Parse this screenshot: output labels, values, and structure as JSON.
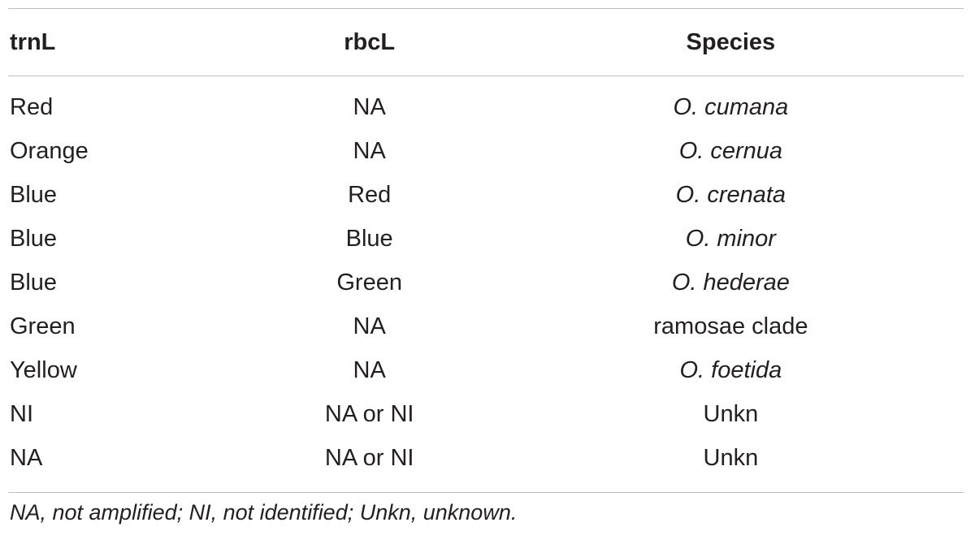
{
  "table": {
    "headers": [
      "trnL",
      "rbcL",
      "Species"
    ],
    "rows": [
      {
        "trnL": "Red",
        "rbcL": "NA",
        "species": "O. cumana",
        "italic": true
      },
      {
        "trnL": "Orange",
        "rbcL": "NA",
        "species": "O. cernua",
        "italic": true
      },
      {
        "trnL": "Blue",
        "rbcL": "Red",
        "species": "O. crenata",
        "italic": true
      },
      {
        "trnL": "Blue",
        "rbcL": "Blue",
        "species": "O. minor",
        "italic": true
      },
      {
        "trnL": "Blue",
        "rbcL": "Green",
        "species": "O. hederae",
        "italic": true
      },
      {
        "trnL": "Green",
        "rbcL": "NA",
        "species": "ramosae clade",
        "italic": false
      },
      {
        "trnL": "Yellow",
        "rbcL": "NA",
        "species": "O. foetida",
        "italic": true
      },
      {
        "trnL": "NI",
        "rbcL": "NA or NI",
        "species": "Unkn",
        "italic": false
      },
      {
        "trnL": "NA",
        "rbcL": "NA or NI",
        "species": "Unkn",
        "italic": false
      }
    ]
  },
  "footnote": "NA, not amplified; NI, not identified; Unkn, unknown."
}
